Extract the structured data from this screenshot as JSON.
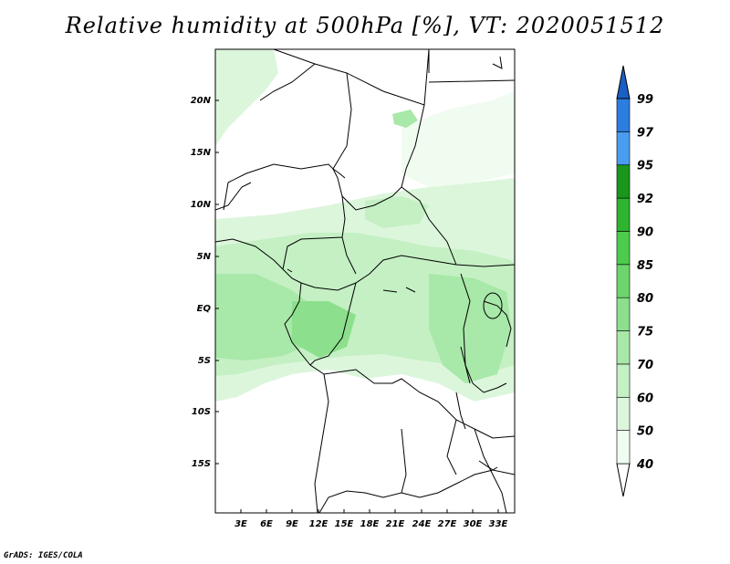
{
  "title": "Relative humidity at 500hPa [%], VT: 2020051512",
  "credit": "GrADS: IGES/COLA",
  "lat_ticks": [
    "20N",
    "15N",
    "10N",
    "5N",
    "EQ",
    "5S",
    "10S",
    "15S"
  ],
  "lon_ticks": [
    "3E",
    "6E",
    "9E",
    "12E",
    "15E",
    "18E",
    "21E",
    "24E",
    "27E",
    "30E",
    "33E"
  ],
  "colorbar": {
    "labels": [
      "40",
      "50",
      "60",
      "70",
      "75",
      "80",
      "85",
      "90",
      "92",
      "95",
      "97",
      "99"
    ],
    "colors": [
      "#f0fcf0",
      "#dcf6dc",
      "#c4f0c4",
      "#a8e8a8",
      "#8cdf8c",
      "#6cd66c",
      "#4ccc4c",
      "#2fb42f",
      "#1a961a",
      "#4a9cf0",
      "#2c7de0",
      "#1a5fc4"
    ]
  }
}
